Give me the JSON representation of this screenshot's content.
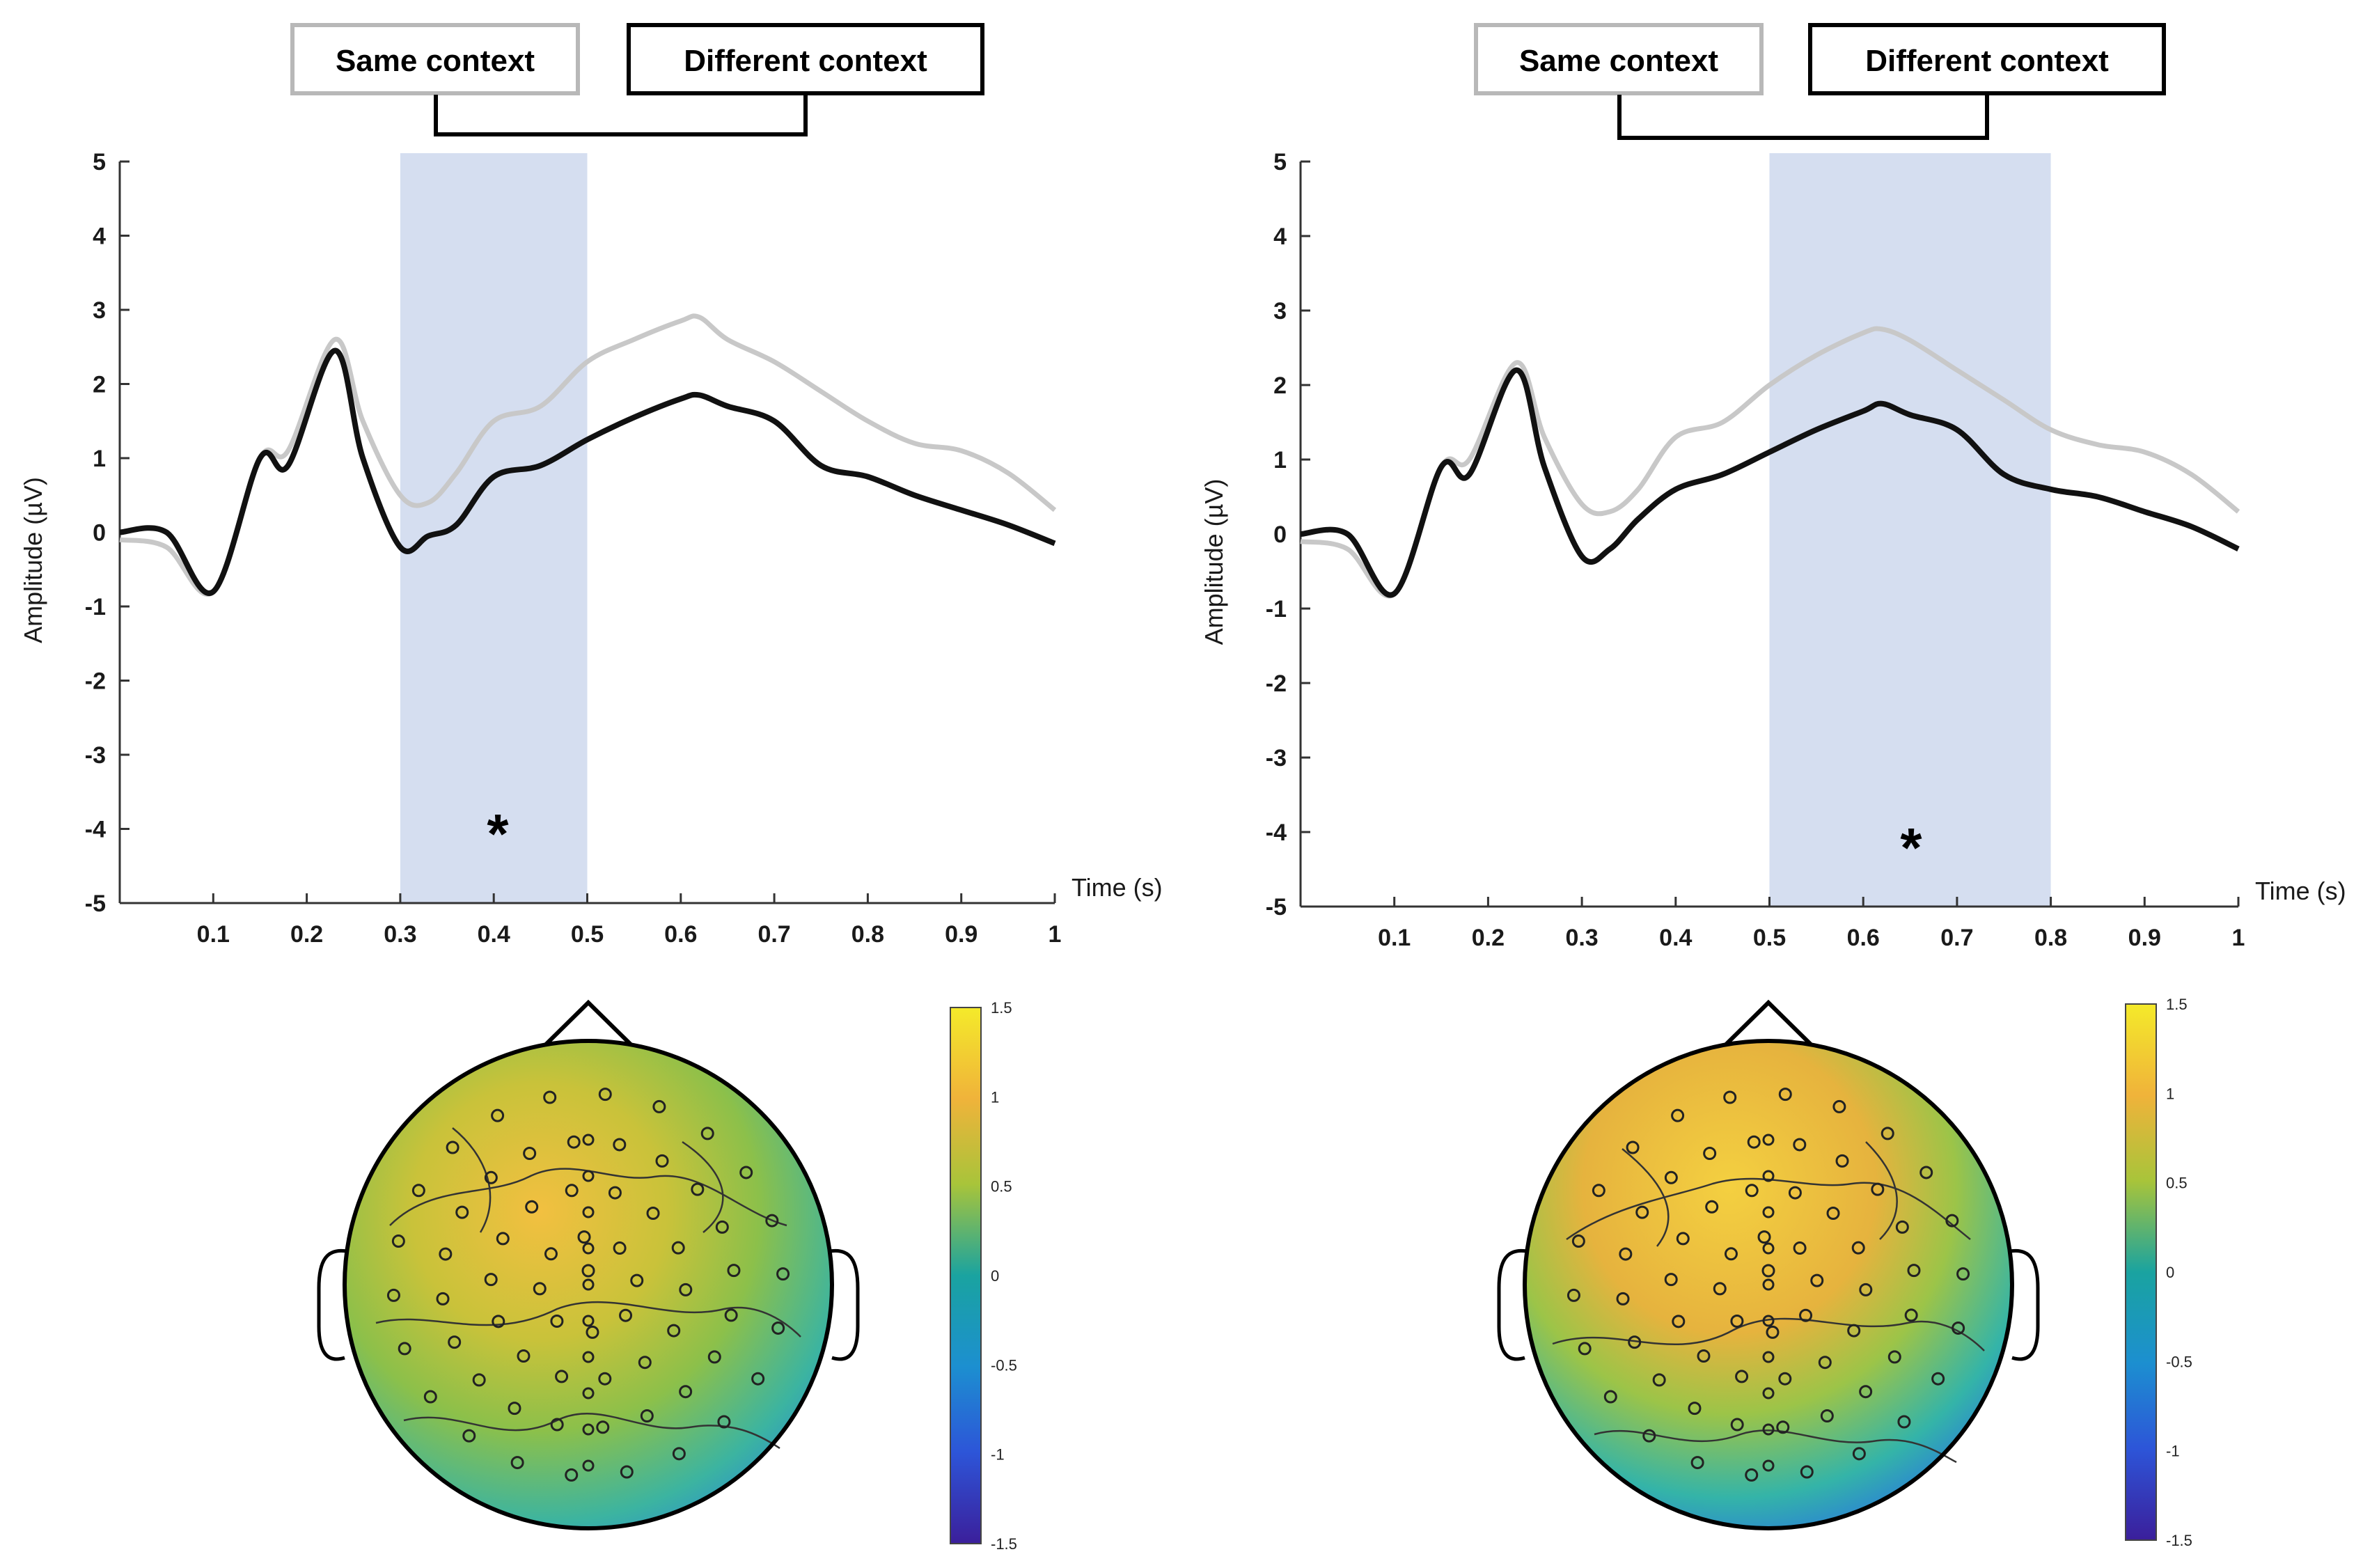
{
  "colors": {
    "same_context": "#c8c8c8",
    "different_context": "#111111",
    "highlight": "#d5def0",
    "scale": [
      "#3b1f9b",
      "#2d62e0",
      "#1aa3c6",
      "#3fb88a",
      "#a8c43a",
      "#f0b33a",
      "#f4ea2a"
    ]
  },
  "chart_data": [
    {
      "type": "line",
      "legend": {
        "same": "Same context",
        "different": "Different context"
      },
      "xlabel": "Time (s)",
      "ylabel": "Amplitude (µV)",
      "xlim": [
        0,
        1
      ],
      "ylim": [
        -5,
        5
      ],
      "xticks": [
        "0.1",
        "0.2",
        "0.3",
        "0.4",
        "0.5",
        "0.6",
        "0.7",
        "0.8",
        "0.9",
        "1"
      ],
      "yticks": [
        "5",
        "4",
        "3",
        "2",
        "1",
        "0",
        "-1",
        "-2",
        "-3",
        "-4",
        "-5"
      ],
      "highlight": [
        0.3,
        0.5
      ],
      "significance": "*",
      "x": [
        0,
        0.05,
        0.1,
        0.15,
        0.18,
        0.23,
        0.26,
        0.3,
        0.33,
        0.36,
        0.4,
        0.45,
        0.5,
        0.55,
        0.6,
        0.62,
        0.65,
        0.7,
        0.75,
        0.8,
        0.85,
        0.9,
        0.95,
        1.0
      ],
      "series": [
        {
          "name": "Same context",
          "values": [
            -0.1,
            -0.2,
            -0.8,
            1.0,
            1.1,
            2.6,
            1.5,
            0.5,
            0.4,
            0.8,
            1.5,
            1.7,
            2.3,
            2.6,
            2.85,
            2.9,
            2.6,
            2.3,
            1.9,
            1.5,
            1.2,
            1.1,
            0.8,
            0.3
          ]
        },
        {
          "name": "Different context",
          "values": [
            0.0,
            0.0,
            -0.8,
            1.0,
            0.9,
            2.45,
            1.0,
            -0.2,
            -0.05,
            0.1,
            0.75,
            0.9,
            1.25,
            1.55,
            1.8,
            1.85,
            1.7,
            1.5,
            0.9,
            0.75,
            0.5,
            0.3,
            0.1,
            -0.15
          ]
        }
      ],
      "colorbar": {
        "ticks": [
          "1.5",
          "1",
          "0.5",
          "0",
          "-0.5",
          "-1",
          "-1.5"
        ]
      }
    },
    {
      "type": "line",
      "legend": {
        "same": "Same context",
        "different": "Different context"
      },
      "xlabel": "Time (s)",
      "ylabel": "Amplitude (µV)",
      "xlim": [
        0,
        1
      ],
      "ylim": [
        -5,
        5
      ],
      "xticks": [
        "0.1",
        "0.2",
        "0.3",
        "0.4",
        "0.5",
        "0.6",
        "0.7",
        "0.8",
        "0.9",
        "1"
      ],
      "yticks": [
        "5",
        "4",
        "3",
        "2",
        "1",
        "0",
        "-1",
        "-2",
        "-3",
        "-4",
        "-5"
      ],
      "highlight": [
        0.5,
        0.8
      ],
      "significance": "*",
      "x": [
        0,
        0.05,
        0.1,
        0.15,
        0.18,
        0.23,
        0.26,
        0.3,
        0.33,
        0.36,
        0.4,
        0.45,
        0.5,
        0.55,
        0.6,
        0.62,
        0.65,
        0.7,
        0.75,
        0.8,
        0.85,
        0.9,
        0.95,
        1.0
      ],
      "series": [
        {
          "name": "Same context",
          "values": [
            -0.1,
            -0.2,
            -0.8,
            0.9,
            1.0,
            2.3,
            1.3,
            0.4,
            0.3,
            0.6,
            1.3,
            1.5,
            2.0,
            2.4,
            2.7,
            2.75,
            2.6,
            2.2,
            1.8,
            1.4,
            1.2,
            1.1,
            0.8,
            0.3
          ]
        },
        {
          "name": "Different context",
          "values": [
            0.0,
            0.0,
            -0.8,
            0.9,
            0.8,
            2.2,
            0.9,
            -0.3,
            -0.2,
            0.2,
            0.6,
            0.8,
            1.1,
            1.4,
            1.65,
            1.75,
            1.6,
            1.4,
            0.8,
            0.6,
            0.5,
            0.3,
            0.1,
            -0.2
          ]
        }
      ],
      "colorbar": {
        "ticks": [
          "1.5",
          "1",
          "0.5",
          "0",
          "-0.5",
          "-1",
          "-1.5"
        ]
      }
    }
  ]
}
